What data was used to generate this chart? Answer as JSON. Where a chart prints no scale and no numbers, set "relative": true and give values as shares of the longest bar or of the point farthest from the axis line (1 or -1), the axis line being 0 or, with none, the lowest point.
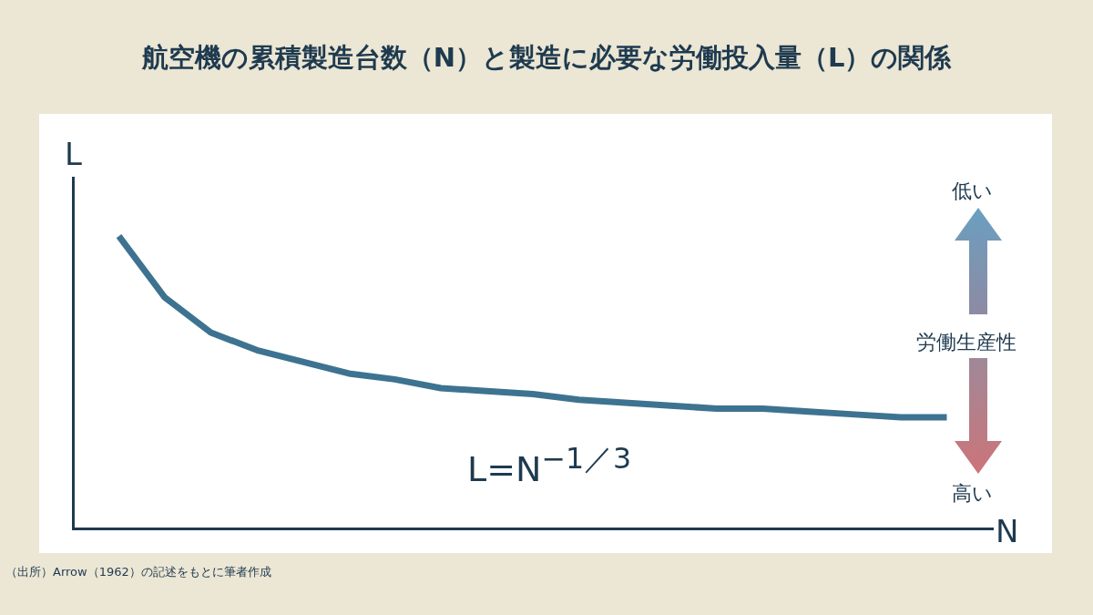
{
  "chart_data": {
    "type": "line",
    "title": "航空機の累積製造台数（N）と製造に必要な労働投入量（L）の関係",
    "xlabel": "N",
    "ylabel": "L",
    "relative": true,
    "categories": [
      null,
      null,
      null,
      null,
      null,
      null,
      null,
      null,
      null,
      null,
      null,
      null,
      null,
      null,
      null,
      null,
      null,
      null,
      null,
      null,
      null
    ],
    "series": [
      {
        "color": "#3d7390",
        "values": [
          null,
          1,
          0.79,
          0.67,
          0.61,
          0.57,
          0.53,
          0.51,
          0.48,
          0.47,
          0.46,
          0.44,
          0.43,
          0.42,
          0.41,
          0.41,
          0.4,
          0.39,
          0.38,
          0.38,
          null
        ]
      }
    ],
    "annotations": [
      "L=N$^{−1／3}$",
      "低い",
      "労働生産性",
      "高い",
      "（出所）Arrow（1962）の記述をもとに筆者作成"
    ]
  }
}
